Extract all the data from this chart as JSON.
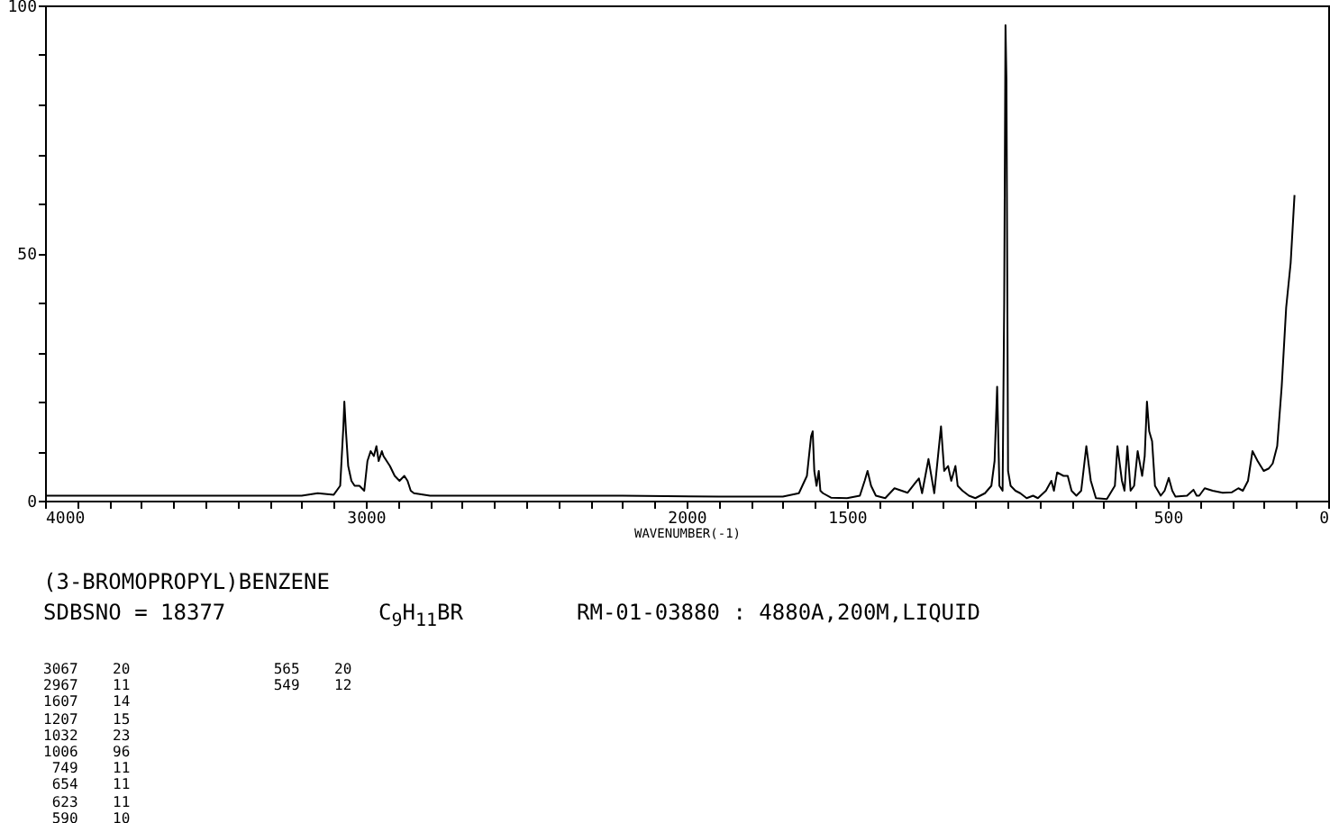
{
  "chart_data": {
    "type": "line",
    "title": "(3-BROMOPROPYL)BENZENE",
    "xlabel": "WAVENUMBER(-1)",
    "annotations": [
      "SDBSNO = 18377",
      "C$_{9}$H$_{11}$BR",
      "RM-01-03880 : 4880A,200M,LIQUID",
      "3067    20",
      "2967    11",
      "1607    14",
      "1207    15",
      "1032    23",
      "1006    96",
      " 749    11",
      " 654    11",
      " 623    11",
      " 590    10",
      " 565    20",
      " 549    12"
    ],
    "color": "#000000",
    "marker": "none",
    "line_style": "solid",
    "x": [
      4000,
      3500,
      3200,
      3150,
      3100,
      3080,
      3070,
      3067,
      3062,
      3055,
      3045,
      3035,
      3020,
      3005,
      2995,
      2985,
      2975,
      2967,
      2960,
      2950,
      2945,
      2935,
      2925,
      2910,
      2895,
      2880,
      2870,
      2860,
      2850,
      2800,
      2500,
      2200,
      1900,
      1700,
      1650,
      1625,
      1612,
      1607,
      1602,
      1595,
      1588,
      1583,
      1575,
      1550,
      1500,
      1460,
      1445,
      1436,
      1425,
      1410,
      1381,
      1352,
      1311,
      1276,
      1266,
      1246,
      1228,
      1207,
      1197,
      1185,
      1175,
      1162,
      1155,
      1140,
      1120,
      1100,
      1070,
      1050,
      1040,
      1032,
      1025,
      1015,
      1010,
      1006,
      1003,
      998,
      990,
      975,
      960,
      940,
      920,
      905,
      880,
      863,
      855,
      845,
      825,
      812,
      800,
      785,
      770,
      754,
      740,
      724,
      690,
      665,
      657,
      643,
      635,
      626,
      616,
      605,
      594,
      580,
      572,
      565,
      558,
      549,
      540,
      522,
      510,
      497,
      486,
      476,
      440,
      420,
      410,
      402,
      385,
      360,
      329,
      300,
      280,
      266,
      250,
      236,
      220,
      201,
      185,
      173,
      159,
      145,
      131,
      117,
      105
    ],
    "values": [
      1,
      1,
      1,
      1.5,
      1.2,
      3,
      15,
      20,
      14,
      7,
      4,
      3,
      3,
      2,
      8,
      10,
      9,
      11,
      8,
      10,
      9,
      8,
      7,
      5,
      4,
      5,
      4,
      2,
      1.5,
      1,
      1,
      1,
      0.8,
      0.8,
      1.5,
      5,
      13,
      14,
      6,
      3,
      6,
      2,
      1.5,
      0.6,
      0.5,
      1,
      4,
      6,
      3,
      1,
      0.5,
      2.5,
      1.6,
      4.5,
      1.5,
      8.4,
      1.5,
      15,
      6,
      7,
      4,
      7,
      3,
      2,
      1,
      0.5,
      1.5,
      3,
      8,
      23,
      3,
      2,
      40,
      96,
      85,
      6,
      3,
      2,
      1.5,
      0.5,
      1,
      0.5,
      2,
      4,
      2,
      5.7,
      5,
      5,
      2,
      1,
      2,
      11,
      4,
      0.5,
      0.3,
      3,
      11,
      4,
      2,
      11,
      2,
      3,
      10,
      5,
      9,
      20,
      14,
      12,
      3,
      1,
      2,
      4.6,
      2,
      0.8,
      1,
      2.2,
      1,
      1,
      2.5,
      2,
      1.6,
      1.7,
      2.5,
      2,
      4,
      10,
      8,
      6,
      6.5,
      7.5,
      11,
      23,
      39,
      48,
      61.7
    ],
    "xlim": [
      4000,
      0
    ],
    "xticks": [
      4000,
      {
        "value": 3900,
        "label": null
      },
      {
        "value": 3800,
        "label": null
      },
      {
        "value": 3700,
        "label": null
      },
      {
        "value": 3600,
        "label": null
      },
      {
        "value": 3500,
        "label": null
      },
      {
        "value": 3400,
        "label": null
      },
      {
        "value": 3300,
        "label": null
      },
      {
        "value": 3200,
        "label": null
      },
      {
        "value": 3100,
        "label": null
      },
      3000,
      {
        "value": 2900,
        "label": null
      },
      {
        "value": 2800,
        "label": null
      },
      {
        "value": 2700,
        "label": null
      },
      {
        "value": 2600,
        "label": null
      },
      {
        "value": 2500,
        "label": null
      },
      {
        "value": 2400,
        "label": null
      },
      {
        "value": 2300,
        "label": null
      },
      {
        "value": 2200,
        "label": null
      },
      {
        "value": 2100,
        "label": null
      },
      2000,
      {
        "value": 1900,
        "label": null
      },
      {
        "value": 1800,
        "label": null
      },
      {
        "value": 1700,
        "label": null
      },
      {
        "value": 1600,
        "label": null
      },
      1500,
      {
        "value": 1400,
        "label": null
      },
      {
        "value": 1300,
        "label": null
      },
      {
        "value": 1200,
        "label": null
      },
      {
        "value": 1100,
        "label": null
      },
      {
        "value": 1000,
        "label": null
      },
      {
        "value": 900,
        "label": null
      },
      {
        "value": 800,
        "label": null
      },
      {
        "value": 700,
        "label": null
      },
      {
        "value": 600,
        "label": null
      },
      500,
      {
        "value": 400,
        "label": null
      },
      {
        "value": 300,
        "label": null
      },
      {
        "value": 200,
        "label": null
      },
      {
        "value": 100,
        "label": null
      },
      0
    ],
    "ylim": [
      0,
      100
    ],
    "yticks": [
      0,
      {
        "value": 10,
        "label": null
      },
      {
        "value": 20,
        "label": null
      },
      {
        "value": 30,
        "label": null
      },
      {
        "value": 40,
        "label": null
      },
      50,
      {
        "value": 60,
        "label": null
      },
      {
        "value": 70,
        "label": null
      },
      {
        "value": 80,
        "label": null
      },
      {
        "value": 90,
        "label": null
      },
      100
    ]
  }
}
